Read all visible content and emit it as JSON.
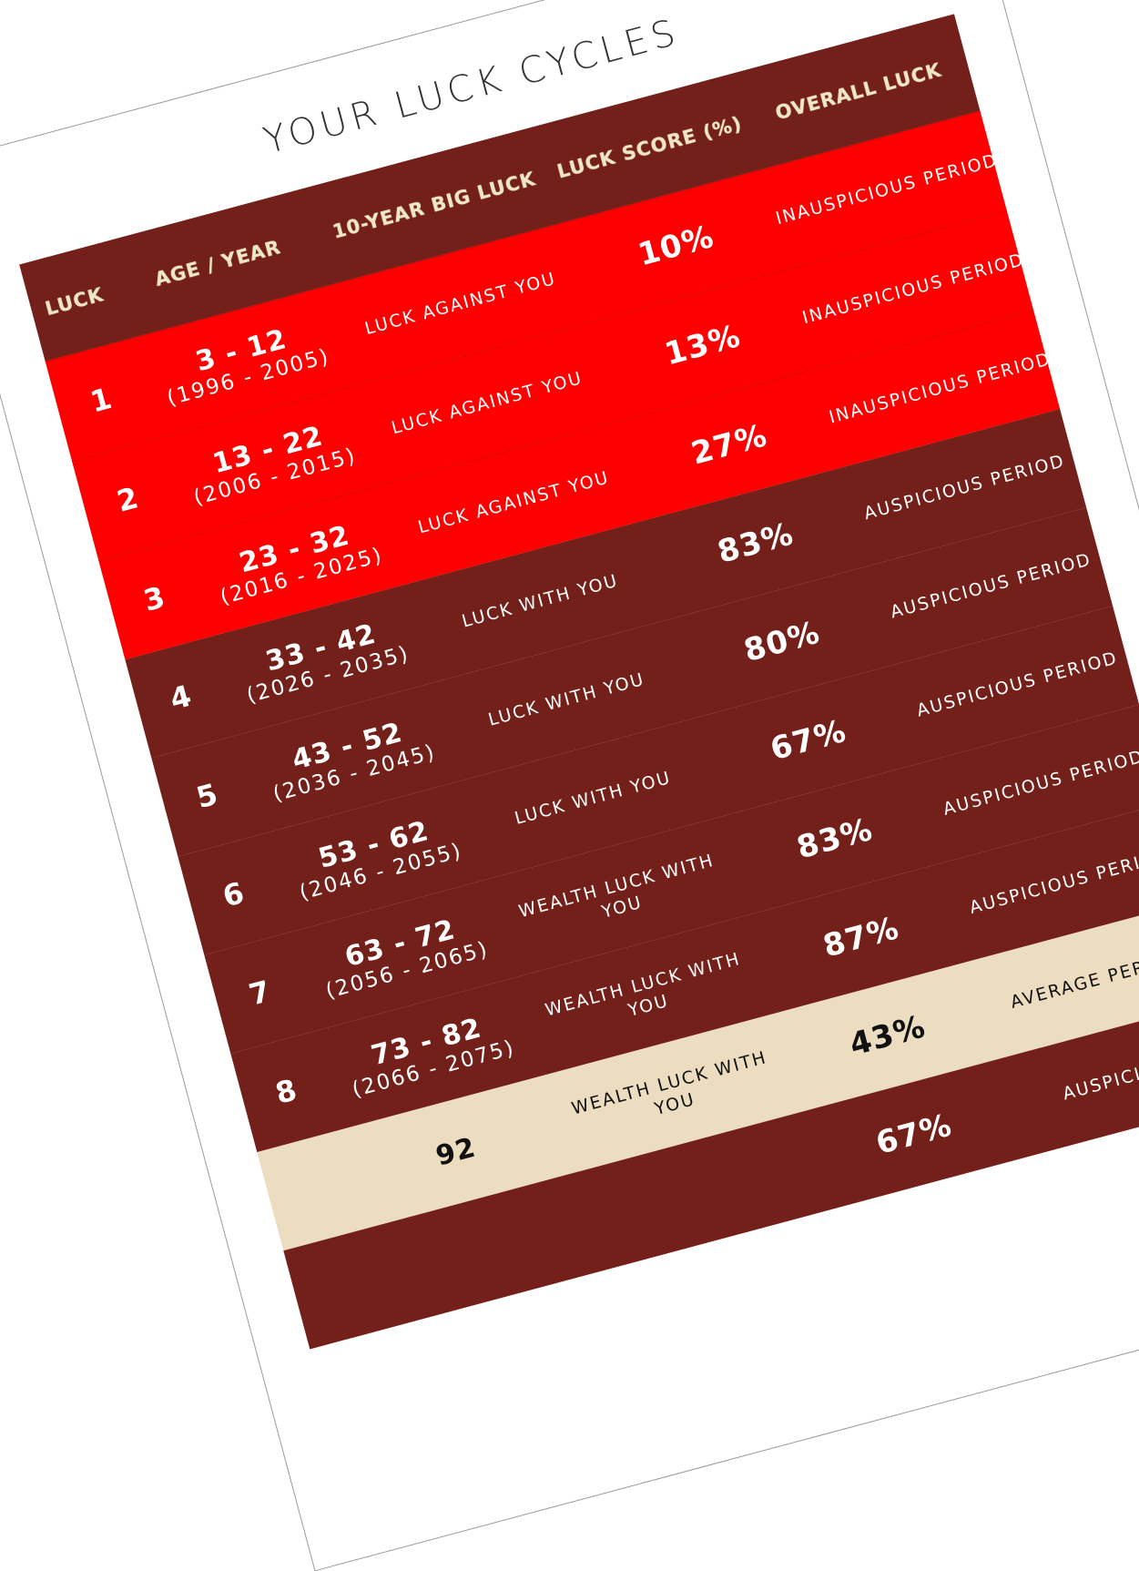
{
  "title": "YOUR LUCK CYCLES",
  "colors": {
    "header": "#74201a",
    "inauspicious": "#fe0000",
    "auspicious": "#74201a",
    "average": "#ecdcc0",
    "header_text": "#efe6c4"
  },
  "headers": [
    "Luck",
    "Age / Year",
    "10-Year Big Luck",
    "Luck Score (%)",
    "Overall Luck"
  ],
  "rows": [
    {
      "luck": "1",
      "age": "3 - 12",
      "years": "(1996 - 2005)",
      "big_luck": "Luck against you",
      "score": "10%",
      "overall": "Inauspicious period",
      "style": "red"
    },
    {
      "luck": "2",
      "age": "13 - 22",
      "years": "(2006 - 2015)",
      "big_luck": "Luck against you",
      "score": "13%",
      "overall": "Inauspicious period",
      "style": "red"
    },
    {
      "luck": "3",
      "age": "23 - 32",
      "years": "(2016 - 2025)",
      "big_luck": "Luck against you",
      "score": "27%",
      "overall": "Inauspicious period",
      "style": "red"
    },
    {
      "luck": "4",
      "age": "33 - 42",
      "years": "(2026 - 2035)",
      "big_luck": "Luck with you",
      "score": "83%",
      "overall": "Auspicious period",
      "style": "dark"
    },
    {
      "luck": "5",
      "age": "43 - 52",
      "years": "(2036 - 2045)",
      "big_luck": "Luck with you",
      "score": "80%",
      "overall": "Auspicious period",
      "style": "dark"
    },
    {
      "luck": "6",
      "age": "53 - 62",
      "years": "(2046 - 2055)",
      "big_luck": "Luck with you",
      "score": "67%",
      "overall": "Auspicious period",
      "style": "dark"
    },
    {
      "luck": "7",
      "age": "63 - 72",
      "years": "(2056 - 2065)",
      "big_luck": "Wealth luck with you",
      "score": "83%",
      "overall": "Auspicious period",
      "style": "dark"
    },
    {
      "luck": "8",
      "age": "73 - 82",
      "years": "(2066 - 2075)",
      "big_luck": "Wealth luck with you",
      "score": "87%",
      "overall": "Auspicious period",
      "style": "dark"
    },
    {
      "luck": "",
      "age": "92",
      "years": "",
      "big_luck": "Wealth luck with you",
      "score": "43%",
      "overall": "Average period",
      "style": "beige"
    },
    {
      "luck": "",
      "age": "",
      "years": "",
      "big_luck": "",
      "score": "67%",
      "overall": "Auspicious",
      "style": "dark"
    }
  ]
}
